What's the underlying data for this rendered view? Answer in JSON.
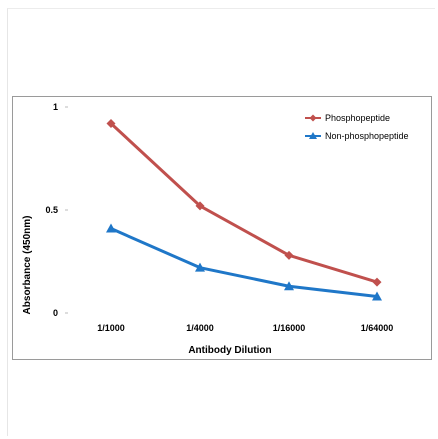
{
  "chart_data": {
    "type": "line",
    "title": "",
    "xlabel": "Antibody Dilution",
    "ylabel": "Absorbance (450nm)",
    "categories": [
      "1/1000",
      "1/4000",
      "1/16000",
      "1/64000"
    ],
    "ylim": [
      0,
      1
    ],
    "yticks": [
      {
        "value": 0,
        "label": "0"
      },
      {
        "value": 0.5,
        "label": "0.5"
      },
      {
        "value": 1,
        "label": "1"
      }
    ],
    "grid": false,
    "legend_position": "top-right",
    "series": [
      {
        "name": "Phosphopeptide",
        "marker": "diamond",
        "color": "#c0504d",
        "values": [
          0.92,
          0.52,
          0.28,
          0.15
        ]
      },
      {
        "name": "Non-phosphopeptide",
        "marker": "triangle",
        "color": "#1f77c8",
        "values": [
          0.41,
          0.22,
          0.13,
          0.08
        ]
      }
    ]
  }
}
